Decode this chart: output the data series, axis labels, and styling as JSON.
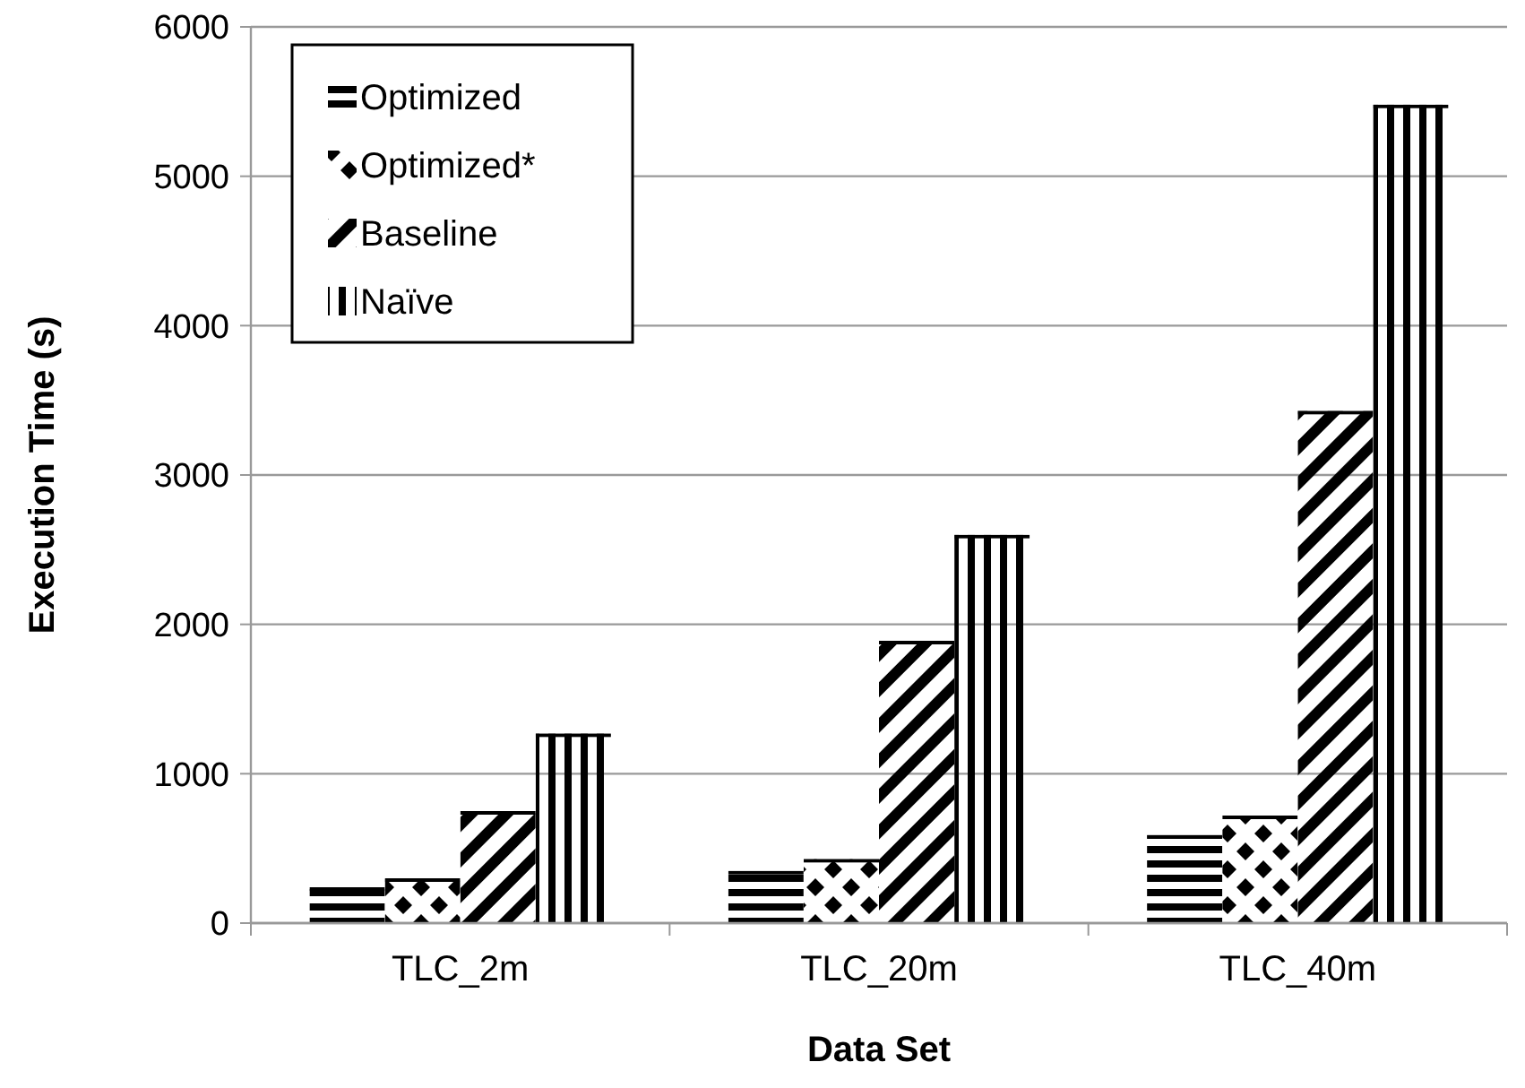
{
  "chart_data": {
    "type": "bar",
    "xlabel": "Data Set",
    "ylabel": "Execution Time (s)",
    "categories": [
      "TLC_2m",
      "TLC_20m",
      "TLC_40m"
    ],
    "series": [
      {
        "name": "Optimized",
        "color": "#000000",
        "values": [
          240,
          350,
          590
        ]
      },
      {
        "name": "Optimized*",
        "color": "#000000",
        "values": [
          300,
          430,
          720
        ]
      },
      {
        "name": "Baseline",
        "color": "#000000",
        "values": [
          750,
          1890,
          3430
        ]
      },
      {
        "name": "Naïve",
        "color": "#000000",
        "values": [
          1270,
          2600,
          5480
        ]
      }
    ],
    "ylim": [
      0,
      6000
    ],
    "yticks": [
      0,
      1000,
      2000,
      3000,
      4000,
      5000,
      6000
    ],
    "grid": "y",
    "legend": "top left"
  }
}
